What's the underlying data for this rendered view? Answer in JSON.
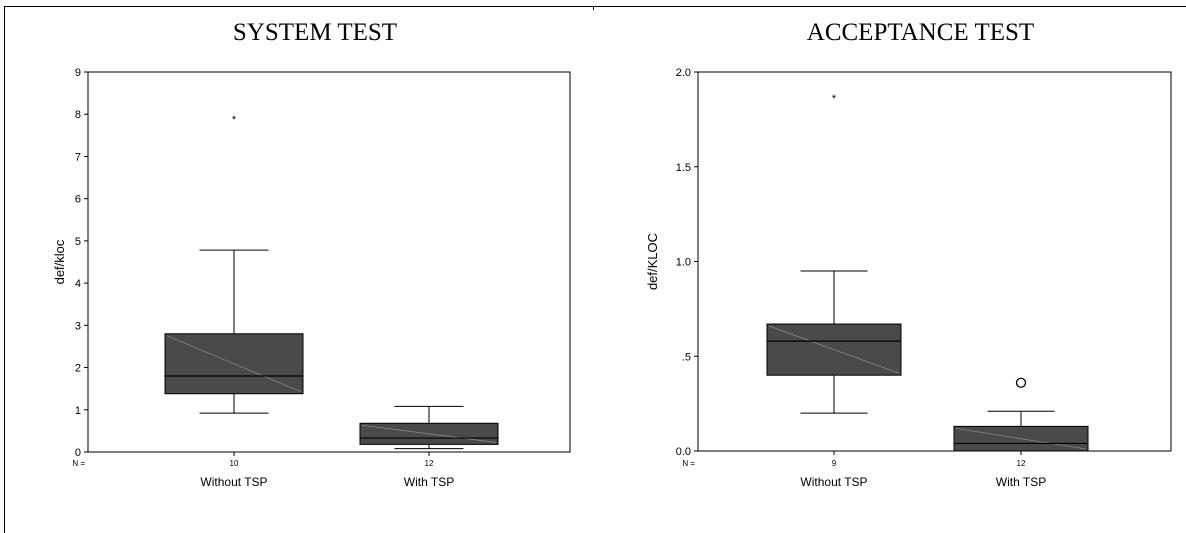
{
  "colors": {
    "box_fill": "#4a4a4a",
    "line": "#000000",
    "diag": "#9a9a9a",
    "background": "#ffffff"
  },
  "chart_data": [
    {
      "type": "box",
      "title": "SYSTEM TEST",
      "xlabel": "",
      "ylabel": "def/kloc",
      "ylim": [
        0,
        9
      ],
      "yticks": [
        0,
        1,
        2,
        3,
        4,
        5,
        6,
        7,
        8,
        9
      ],
      "ytick_labels": [
        "0",
        "1",
        "2",
        "3",
        "4",
        "5",
        "6",
        "7",
        "8",
        "9"
      ],
      "n_prefix": "N =",
      "grid": false,
      "groups": [
        {
          "label": "Without TSP",
          "n": "10",
          "whisker_low": 0.92,
          "q1": 1.38,
          "median": 1.8,
          "q3": 2.8,
          "whisker_high": 4.78,
          "outliers": [],
          "extremes": [
            8.0
          ]
        },
        {
          "label": "With TSP",
          "n": "12",
          "whisker_low": 0.08,
          "q1": 0.18,
          "median": 0.33,
          "q3": 0.68,
          "whisker_high": 1.08,
          "outliers": [],
          "extremes": []
        }
      ]
    },
    {
      "type": "box",
      "title": "ACCEPTANCE TEST",
      "xlabel": "",
      "ylabel": "def/KLOC",
      "ylim": [
        0,
        2.0
      ],
      "yticks": [
        0,
        0.5,
        1.0,
        1.5,
        2.0
      ],
      "ytick_labels": [
        "0.0",
        ".5",
        "1.0",
        "1.5",
        "2.0"
      ],
      "n_prefix": "N =",
      "grid": false,
      "groups": [
        {
          "label": "Without TSP",
          "n": "9",
          "whisker_low": 0.2,
          "q1": 0.4,
          "median": 0.58,
          "q3": 0.67,
          "whisker_high": 0.95,
          "outliers": [],
          "extremes": [
            1.89
          ]
        },
        {
          "label": "With TSP",
          "n": "12",
          "whisker_low": 0.0,
          "q1": 0.0,
          "median": 0.04,
          "q3": 0.13,
          "whisker_high": 0.21,
          "outliers": [
            0.36
          ],
          "extremes": []
        }
      ]
    }
  ]
}
